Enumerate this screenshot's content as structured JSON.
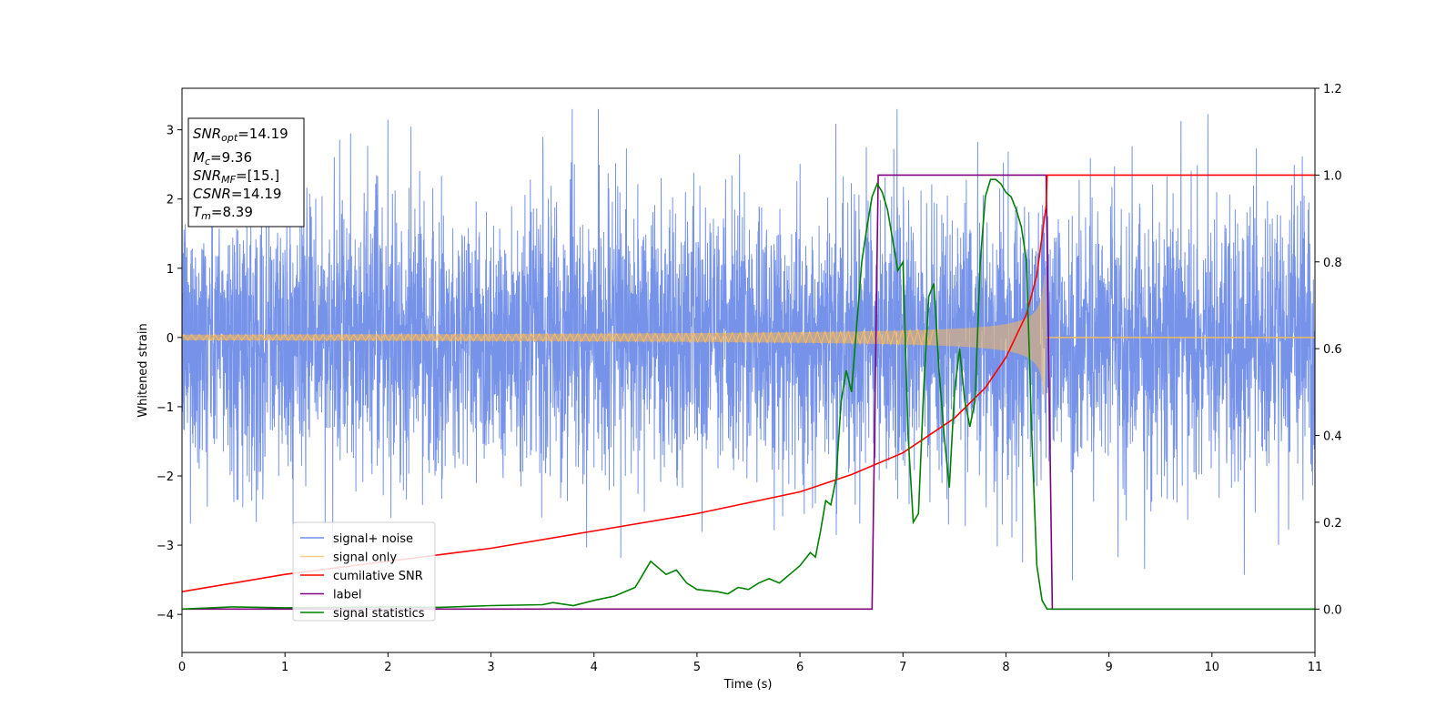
{
  "chart_data": {
    "type": "line",
    "xlabel": "Time (s)",
    "ylabel_left": "Whitened strain",
    "ylabel_right": "",
    "xlim": [
      0,
      11
    ],
    "ylim_left": [
      -4.55,
      3.6
    ],
    "ylim_right": [
      -0.1,
      1.2
    ],
    "x_ticks": [
      "0",
      "1",
      "2",
      "3",
      "4",
      "5",
      "6",
      "7",
      "8",
      "9",
      "10",
      "11"
    ],
    "y_ticks_left": [
      "3",
      "2",
      "1",
      "0",
      "−1",
      "−2",
      "−3",
      "−4"
    ],
    "y_ticks_right": [
      "1.2",
      "1.0",
      "0.8",
      "0.6",
      "0.4",
      "0.2",
      "0.0"
    ],
    "grid": false,
    "legend_position": "lower-left",
    "info_box": {
      "snr_opt": {
        "symbol": "SNR",
        "sub": "opt",
        "value": "=14.19"
      },
      "mc": {
        "symbol": "M",
        "sub": "c",
        "value": "=9.36"
      },
      "snr_mf": {
        "symbol": "SNR",
        "sub": "MF",
        "value": "=[15.]"
      },
      "csnr": {
        "symbol": "CSNR",
        "value": "=14.19"
      },
      "tm": {
        "symbol": "T",
        "sub": "m",
        "value": "=8.39"
      }
    },
    "series": [
      {
        "name": "signal+ noise",
        "axis": "left",
        "color": "#4169e1",
        "kind": "noise",
        "approx_range": [
          -3.7,
          3.3
        ]
      },
      {
        "name": "signal only",
        "axis": "left",
        "color": "#f4b860",
        "kind": "chirp",
        "start_amplitude": 0.04,
        "end_amplitude": 0.9,
        "merger_time": 8.39
      },
      {
        "name": "cumilative SNR",
        "axis": "right",
        "color": "#ff0000",
        "x": [
          0,
          1,
          2,
          3,
          4,
          5,
          6,
          6.5,
          7,
          7.5,
          7.8,
          8,
          8.2,
          8.3,
          8.39,
          8.4,
          11
        ],
        "y": [
          0.04,
          0.08,
          0.11,
          0.14,
          0.18,
          0.22,
          0.27,
          0.31,
          0.36,
          0.44,
          0.51,
          0.58,
          0.68,
          0.77,
          0.93,
          1.0,
          1.0
        ]
      },
      {
        "name": "label",
        "axis": "right",
        "color": "#800080",
        "x": [
          0,
          6.7,
          6.76,
          8.39,
          8.45,
          11
        ],
        "y": [
          0,
          0,
          1.0,
          1.0,
          0,
          0
        ]
      },
      {
        "name": "signal statistics",
        "axis": "right",
        "color": "#008000",
        "x": [
          0,
          0.5,
          1,
          2,
          2.5,
          3,
          3.5,
          3.6,
          3.8,
          4,
          4.2,
          4.4,
          4.55,
          4.7,
          4.8,
          4.9,
          5,
          5.2,
          5.3,
          5.4,
          5.5,
          5.6,
          5.7,
          5.8,
          5.9,
          6,
          6.1,
          6.15,
          6.2,
          6.25,
          6.3,
          6.35,
          6.4,
          6.45,
          6.5,
          6.55,
          6.6,
          6.65,
          6.7,
          6.75,
          6.8,
          6.85,
          6.9,
          6.95,
          7,
          7.05,
          7.1,
          7.15,
          7.2,
          7.25,
          7.3,
          7.35,
          7.4,
          7.45,
          7.5,
          7.55,
          7.6,
          7.65,
          7.7,
          7.75,
          7.8,
          7.85,
          7.9,
          7.95,
          8,
          8.05,
          8.1,
          8.15,
          8.2,
          8.25,
          8.3,
          8.35,
          8.4,
          8.45,
          8.5,
          11
        ],
        "y": [
          0.0,
          0.005,
          0.003,
          0.005,
          0.004,
          0.008,
          0.01,
          0.015,
          0.008,
          0.02,
          0.03,
          0.05,
          0.11,
          0.08,
          0.09,
          0.06,
          0.045,
          0.04,
          0.035,
          0.05,
          0.045,
          0.06,
          0.07,
          0.06,
          0.08,
          0.1,
          0.13,
          0.12,
          0.18,
          0.25,
          0.24,
          0.3,
          0.48,
          0.55,
          0.5,
          0.65,
          0.8,
          0.88,
          0.95,
          0.98,
          0.96,
          0.92,
          0.85,
          0.78,
          0.8,
          0.4,
          0.2,
          0.22,
          0.5,
          0.72,
          0.75,
          0.55,
          0.4,
          0.28,
          0.5,
          0.6,
          0.48,
          0.42,
          0.48,
          0.8,
          0.95,
          0.99,
          0.99,
          0.98,
          0.96,
          0.95,
          0.92,
          0.88,
          0.8,
          0.4,
          0.1,
          0.02,
          0.0,
          0.0,
          0.0,
          0.0
        ]
      }
    ]
  }
}
